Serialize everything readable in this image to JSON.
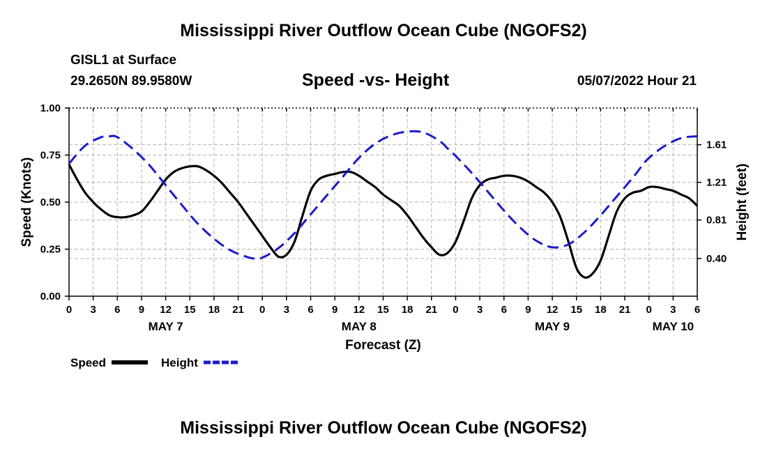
{
  "header": {
    "title": "Mississippi River Outflow Ocean Cube (NGOFS2)",
    "station": "GISL1 at Surface",
    "coords": "29.2650N  89.9580W",
    "subtitle": "Speed -vs- Height",
    "datetime": "05/07/2022 Hour 21"
  },
  "footer": {
    "title": "Mississippi River Outflow Ocean Cube (NGOFS2)"
  },
  "colors": {
    "speed": "#000000",
    "height": "#1a1acc",
    "grid": "#b4b4b4"
  },
  "chart_data": {
    "type": "line",
    "title": "Speed -vs- Height",
    "xlabel": "Forecast (Z)",
    "ylabel_left": "Speed (Knots)",
    "ylabel_right": "Height (feet)",
    "x_unit": "hours from 00Z May 7",
    "xlim": [
      0,
      78
    ],
    "x_ticks": [
      0,
      3,
      6,
      9,
      12,
      15,
      18,
      21,
      24,
      27,
      30,
      33,
      36,
      39,
      42,
      45,
      48,
      51,
      54,
      57,
      60,
      63,
      66,
      69,
      72,
      75,
      78
    ],
    "x_tick_labels": [
      "0",
      "3",
      "6",
      "9",
      "12",
      "15",
      "18",
      "21",
      "0",
      "3",
      "6",
      "9",
      "12",
      "15",
      "18",
      "21",
      "0",
      "3",
      "6",
      "9",
      "12",
      "15",
      "18",
      "21",
      "0",
      "3",
      "6"
    ],
    "date_labels": [
      {
        "label": "MAY 7",
        "x": 12
      },
      {
        "label": "MAY 8",
        "x": 36
      },
      {
        "label": "MAY 9",
        "x": 60
      },
      {
        "label": "MAY 10",
        "x": 75
      }
    ],
    "ylim_left": [
      0,
      1
    ],
    "yticks_left": [
      0,
      0.25,
      0.5,
      0.75,
      1.0
    ],
    "ytick_labels_left": [
      "0.00",
      "0.25",
      "0.50",
      "0.75",
      "1.00"
    ],
    "ylim_right": [
      0,
      2
    ],
    "yticks_right": [
      0.4,
      0.81,
      1.21,
      1.61
    ],
    "ytick_labels_right": [
      "0.40",
      "0.81",
      "1.21",
      "1.61"
    ],
    "grid": true,
    "legend": [
      {
        "name": "Speed",
        "style": "solid"
      },
      {
        "name": "Height",
        "style": "dashed"
      }
    ],
    "series": [
      {
        "name": "Speed",
        "axis": "left",
        "style": "solid",
        "x": [
          0,
          1,
          2,
          3,
          4,
          5,
          6,
          7,
          8,
          9,
          10,
          11,
          12,
          13,
          14,
          15,
          16,
          17,
          18,
          19,
          20,
          21,
          22,
          23,
          24,
          25,
          26,
          27,
          28,
          29,
          30,
          31,
          32,
          33,
          34,
          35,
          36,
          37,
          38,
          39,
          40,
          41,
          42,
          43,
          44,
          45,
          46,
          47,
          48,
          49,
          50,
          51,
          52,
          53,
          54,
          55,
          56,
          57,
          58,
          59,
          60,
          61,
          62,
          63,
          64,
          65,
          66,
          67,
          68,
          69,
          70,
          71,
          72,
          73,
          74,
          75,
          76,
          77,
          78
        ],
        "values": [
          0.7,
          0.62,
          0.55,
          0.5,
          0.46,
          0.43,
          0.42,
          0.42,
          0.43,
          0.45,
          0.5,
          0.56,
          0.62,
          0.66,
          0.68,
          0.69,
          0.69,
          0.67,
          0.64,
          0.6,
          0.55,
          0.5,
          0.44,
          0.38,
          0.32,
          0.26,
          0.21,
          0.22,
          0.29,
          0.43,
          0.56,
          0.62,
          0.64,
          0.65,
          0.66,
          0.66,
          0.64,
          0.61,
          0.58,
          0.54,
          0.51,
          0.48,
          0.43,
          0.37,
          0.31,
          0.26,
          0.22,
          0.23,
          0.29,
          0.4,
          0.52,
          0.59,
          0.62,
          0.63,
          0.64,
          0.64,
          0.63,
          0.61,
          0.58,
          0.55,
          0.5,
          0.42,
          0.29,
          0.15,
          0.1,
          0.12,
          0.19,
          0.32,
          0.45,
          0.52,
          0.55,
          0.56,
          0.58,
          0.58,
          0.57,
          0.56,
          0.54,
          0.52,
          0.48
        ]
      },
      {
        "name": "Height",
        "axis": "right",
        "style": "dashed",
        "x": [
          0,
          2,
          4,
          5,
          6,
          8,
          10,
          12,
          14,
          16,
          18,
          20,
          22,
          23,
          24,
          26,
          28,
          30,
          32,
          34,
          36,
          38,
          40,
          42,
          44,
          46,
          47,
          48,
          50,
          52,
          54,
          56,
          58,
          60,
          62,
          64,
          66,
          68,
          70,
          71,
          72,
          74,
          76,
          78
        ],
        "values": [
          1.41,
          1.6,
          1.69,
          1.7,
          1.69,
          1.56,
          1.39,
          1.18,
          0.97,
          0.77,
          0.61,
          0.49,
          0.42,
          0.4,
          0.41,
          0.51,
          0.67,
          0.87,
          1.07,
          1.27,
          1.47,
          1.62,
          1.71,
          1.75,
          1.74,
          1.65,
          1.57,
          1.49,
          1.31,
          1.11,
          0.91,
          0.73,
          0.59,
          0.52,
          0.55,
          0.68,
          0.86,
          1.06,
          1.26,
          1.37,
          1.47,
          1.6,
          1.68,
          1.7
        ]
      }
    ]
  }
}
